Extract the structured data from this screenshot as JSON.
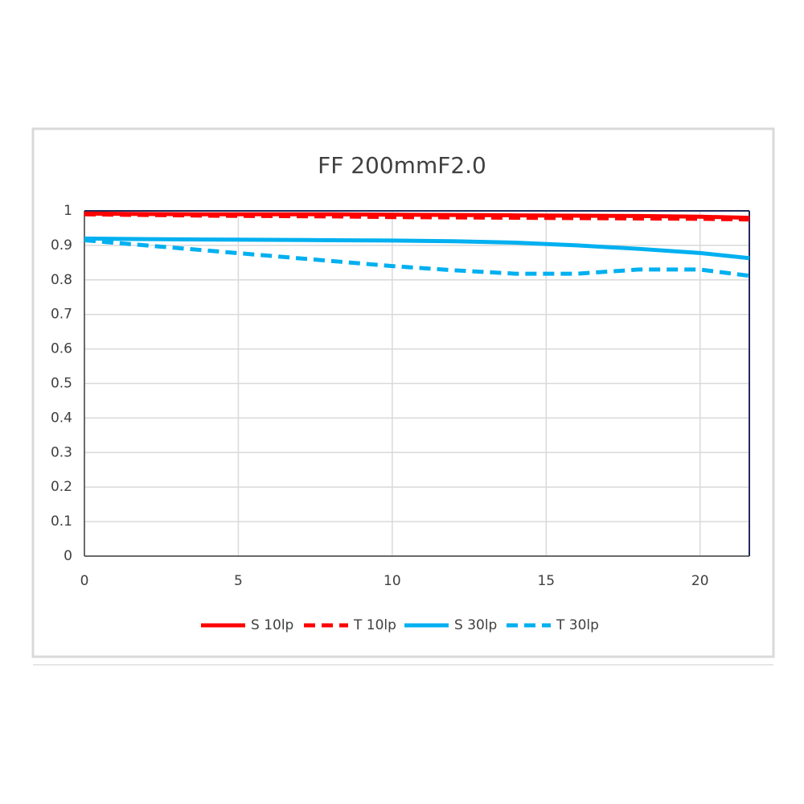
{
  "chart_data": {
    "type": "line",
    "title": "FF  200mmF2.0",
    "x": [
      0,
      2,
      4,
      6,
      8,
      10,
      12,
      14,
      16,
      18,
      20,
      21.6
    ],
    "series": [
      {
        "name": "S 10lp",
        "color": "#ff0000",
        "style": "solid",
        "values": [
          0.992,
          0.991,
          0.99,
          0.99,
          0.99,
          0.989,
          0.988,
          0.987,
          0.986,
          0.985,
          0.983,
          0.98
        ]
      },
      {
        "name": "T 10lp",
        "color": "#ff0000",
        "style": "dashed",
        "values": [
          0.99,
          0.988,
          0.986,
          0.985,
          0.984,
          0.982,
          0.981,
          0.98,
          0.979,
          0.978,
          0.977,
          0.975
        ]
      },
      {
        "name": "S 30lp",
        "color": "#00b0f0",
        "style": "solid",
        "values": [
          0.92,
          0.918,
          0.917,
          0.916,
          0.915,
          0.914,
          0.912,
          0.908,
          0.9,
          0.89,
          0.878,
          0.863
        ]
      },
      {
        "name": "T 30lp",
        "color": "#00b0f0",
        "style": "dashed",
        "values": [
          0.915,
          0.9,
          0.885,
          0.87,
          0.855,
          0.84,
          0.828,
          0.818,
          0.818,
          0.83,
          0.83,
          0.812
        ]
      }
    ],
    "xlim": [
      0,
      21.6
    ],
    "xticks": [
      0,
      5,
      10,
      15,
      20
    ],
    "ylim": [
      0,
      1
    ],
    "yticks": [
      0,
      0.1,
      0.2,
      0.3,
      0.4,
      0.5,
      0.6,
      0.7,
      0.8,
      0.9,
      1
    ],
    "grid": true,
    "legend": "bottom"
  }
}
